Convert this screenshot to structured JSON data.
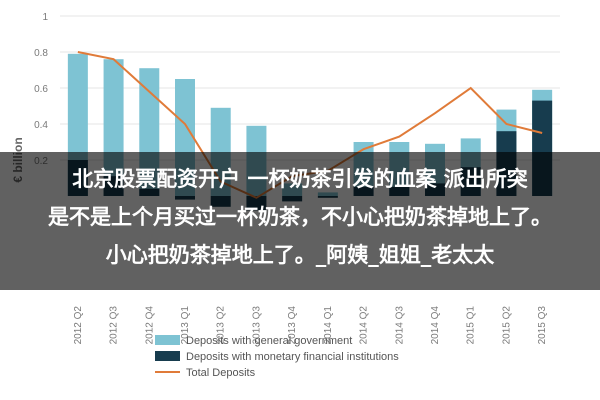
{
  "chart_data": {
    "type": "bar",
    "ylabel": "€ billion",
    "ylim": [
      -0.2,
      1
    ],
    "yticks": [
      1,
      0.8,
      0.6,
      0.4,
      0.2
    ],
    "categories": [
      "2012 Q2",
      "2012 Q3",
      "2012 Q4",
      "2013 Q1",
      "2013 Q2",
      "2013 Q3",
      "2013 Q4",
      "2014 Q1",
      "2014 Q2",
      "2014 Q3",
      "2014 Q4",
      "2015 Q1",
      "2015 Q2",
      "2015 Q3"
    ],
    "series": [
      {
        "name": "Deposits with general government",
        "type": "bar",
        "color": "#7ec3d3",
        "values": [
          0.79,
          0.76,
          0.71,
          0.65,
          0.49,
          0.39,
          0.07,
          0.02,
          0.3,
          0.3,
          0.29,
          0.32,
          0.48,
          0.59
        ]
      },
      {
        "name": "Deposits with monetary financial institutions",
        "type": "bar",
        "color": "#173c4e",
        "values": [
          0.2,
          0.11,
          0.04,
          -0.02,
          -0.06,
          -0.08,
          -0.03,
          -0.01,
          0.05,
          0.05,
          0.07,
          0.16,
          0.36,
          0.53
        ]
      },
      {
        "name": "Total Deposits",
        "type": "line",
        "color": "#e07b39",
        "values": [
          0.8,
          0.76,
          0.58,
          0.4,
          0.08,
          -0.01,
          0.11,
          0.14,
          0.26,
          0.33,
          0.46,
          0.6,
          0.4,
          0.35
        ]
      }
    ],
    "legend": "bottom"
  },
  "overlay": {
    "line1": "北京股票配资开户 一杯奶茶引发的血案 派出所突",
    "line2": "是不是上个月买过一杯奶茶，不小心把奶茶掉地上了。",
    "line3": "小心把奶茶掉地上了。_阿姨_姐姐_老太太"
  }
}
